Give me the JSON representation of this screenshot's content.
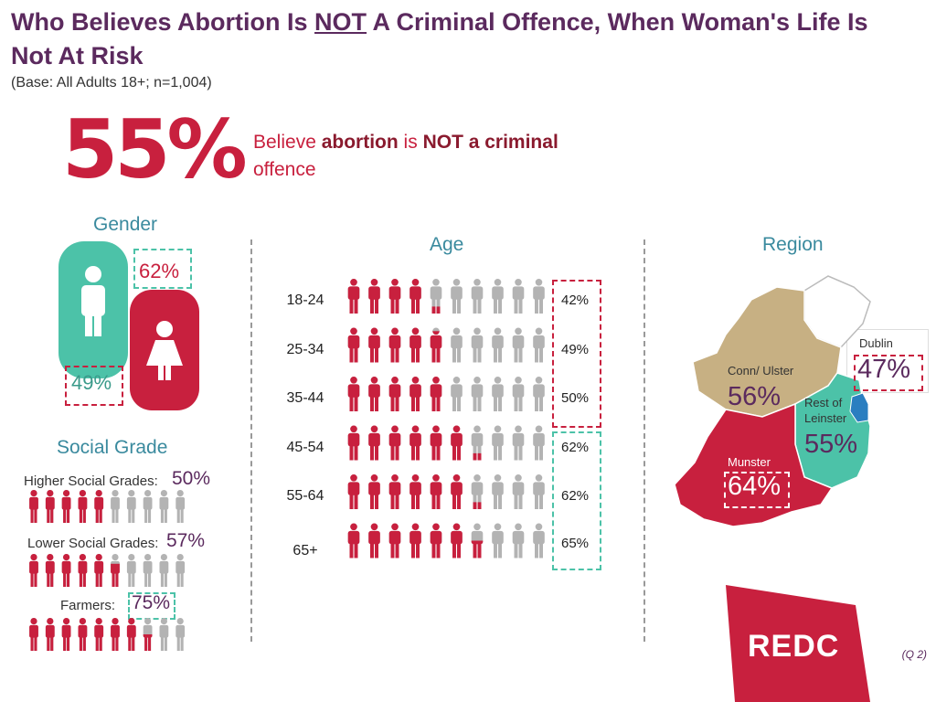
{
  "title": {
    "part1": "Who Believes Abortion Is ",
    "part2": "NOT",
    "part3": " A Criminal Offence, When Woman's Life Is Not At Risk"
  },
  "base": "(Base: All Adults 18+; n=1,004)",
  "headline": {
    "pct": "55%",
    "t1": "Believe ",
    "t2": "abortion",
    "t3": " is ",
    "t4": "NOT a criminal",
    "t5": "offence"
  },
  "sections": {
    "gender": "Gender",
    "age": "Age",
    "region": "Region",
    "social": "Social Grade"
  },
  "gender": {
    "male_pct": "49%",
    "female_pct": "62%"
  },
  "social_labels": {
    "higher": "Higher Social Grades:",
    "higher_pct": "50%",
    "lower": "Lower Social Grades:",
    "lower_pct": "57%",
    "farmers": "Farmers:",
    "farmers_pct": "75%"
  },
  "region_labels": {
    "dublin": "Dublin",
    "dublin_pct": "47%",
    "conn": "Conn/ Ulster",
    "conn_pct": "56%",
    "rol": "Rest of Leinster",
    "rol_pct": "55%",
    "munster": "Munster",
    "munster_pct": "64%"
  },
  "footnote": "(Q 2)",
  "logo": "REDC",
  "colors": {
    "red": "#c8203e",
    "teal": "#4cc2a8",
    "grey": "#b3b3b3",
    "purple": "#5b2a5e",
    "tan": "#c7b083",
    "blue": "#2a7ec0"
  },
  "chart_data": [
    {
      "type": "bar",
      "title": "Gender",
      "categories": [
        "Male",
        "Female"
      ],
      "values": [
        49,
        62
      ]
    },
    {
      "type": "bar",
      "title": "Age",
      "categories": [
        "18-24",
        "25-34",
        "35-44",
        "45-54",
        "55-64",
        "65+"
      ],
      "values": [
        42,
        49,
        50,
        62,
        62,
        65
      ],
      "labels": [
        "42%",
        "49%",
        "50%",
        "62%",
        "62%",
        "65%"
      ]
    },
    {
      "type": "bar",
      "title": "Social Grade",
      "categories": [
        "Higher Social Grades",
        "Lower Social Grades",
        "Farmers"
      ],
      "values": [
        50,
        57,
        75
      ]
    },
    {
      "type": "bar",
      "title": "Region",
      "categories": [
        "Dublin",
        "Conn/ Ulster",
        "Rest of Leinster",
        "Munster"
      ],
      "values": [
        47,
        56,
        55,
        64
      ]
    }
  ]
}
